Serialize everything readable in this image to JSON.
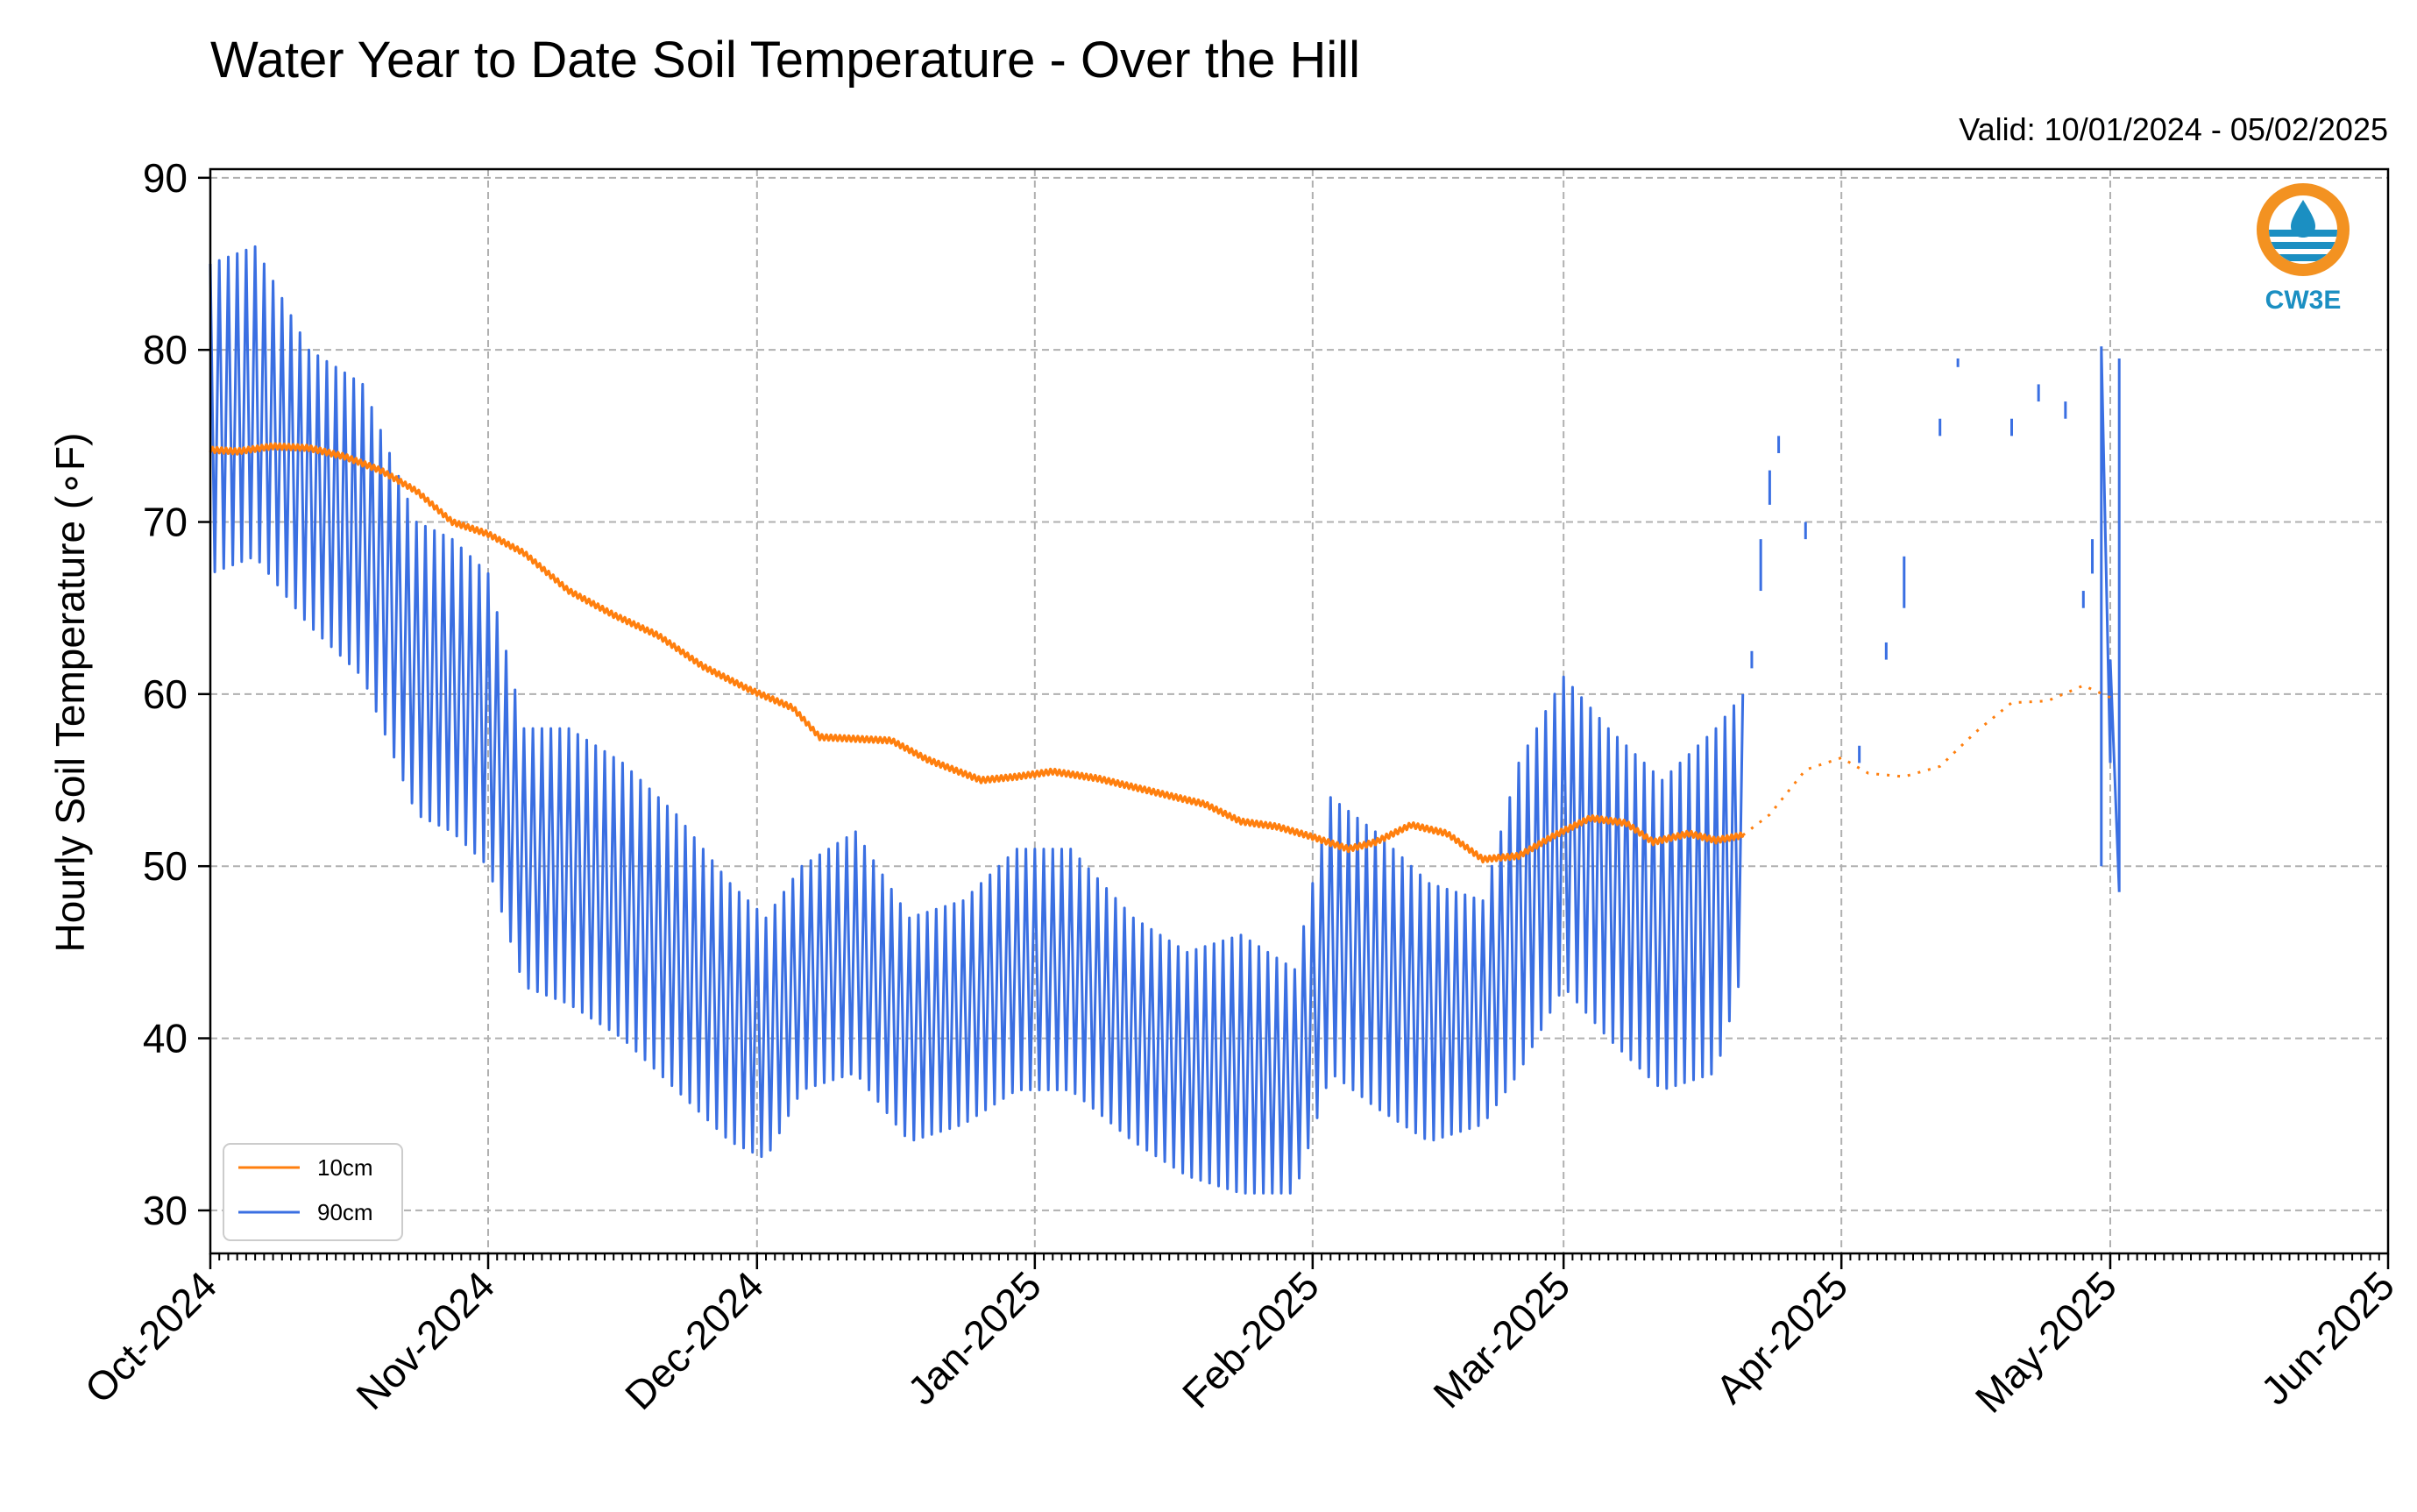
{
  "chart_data": {
    "type": "line",
    "title": "Water Year to Date Soil Temperature - Over the Hill",
    "subtitle": "Valid: 10/01/2024 - 05/02/2025",
    "ylabel": "Hourly Soil Temperature (∘F)",
    "xlabel": "",
    "ylim": [
      27.5,
      90.5
    ],
    "xlim": [
      "2024-10-01",
      "2025-06-01"
    ],
    "yticks": [
      30,
      40,
      50,
      60,
      70,
      80,
      90
    ],
    "xticks": [
      {
        "label": "Oct-2024",
        "date": "2024-10-01"
      },
      {
        "label": "Nov-2024",
        "date": "2024-11-01"
      },
      {
        "label": "Dec-2024",
        "date": "2024-12-01"
      },
      {
        "label": "Jan-2025",
        "date": "2025-01-01"
      },
      {
        "label": "Feb-2025",
        "date": "2025-02-01"
      },
      {
        "label": "Mar-2025",
        "date": "2025-03-01"
      },
      {
        "label": "Apr-2025",
        "date": "2025-04-01"
      },
      {
        "label": "May-2025",
        "date": "2025-05-01"
      },
      {
        "label": "Jun-2025",
        "date": "2025-06-01"
      }
    ],
    "grid": true,
    "legend_position": "lower-left",
    "series": [
      {
        "name": "10cm",
        "color": "#ff7f0e",
        "style": "solid",
        "points": [
          [
            "2024-10-01",
            74.2
          ],
          [
            "2024-10-04",
            74.1
          ],
          [
            "2024-10-08",
            74.4
          ],
          [
            "2024-10-12",
            74.3
          ],
          [
            "2024-10-16",
            73.8
          ],
          [
            "2024-10-20",
            73.0
          ],
          [
            "2024-10-24",
            71.8
          ],
          [
            "2024-10-28",
            70.0
          ],
          [
            "2024-11-01",
            69.3
          ],
          [
            "2024-11-05",
            68.2
          ],
          [
            "2024-11-10",
            66.0
          ],
          [
            "2024-11-15",
            64.6
          ],
          [
            "2024-11-20",
            63.4
          ],
          [
            "2024-11-25",
            61.6
          ],
          [
            "2024-11-30",
            60.3
          ],
          [
            "2024-12-05",
            59.2
          ],
          [
            "2024-12-08",
            57.5
          ],
          [
            "2024-12-12",
            57.4
          ],
          [
            "2024-12-16",
            57.3
          ],
          [
            "2024-12-20",
            56.2
          ],
          [
            "2024-12-26",
            55.0
          ],
          [
            "2024-12-30",
            55.2
          ],
          [
            "2025-01-03",
            55.5
          ],
          [
            "2025-01-08",
            55.1
          ],
          [
            "2025-01-12",
            54.6
          ],
          [
            "2025-01-16",
            54.1
          ],
          [
            "2025-01-20",
            53.6
          ],
          [
            "2025-01-24",
            52.6
          ],
          [
            "2025-01-28",
            52.3
          ],
          [
            "2025-02-01",
            51.7
          ],
          [
            "2025-02-05",
            51.0
          ],
          [
            "2025-02-08",
            51.4
          ],
          [
            "2025-02-12",
            52.4
          ],
          [
            "2025-02-16",
            51.9
          ],
          [
            "2025-02-20",
            50.4
          ],
          [
            "2025-02-24",
            50.6
          ],
          [
            "2025-02-28",
            51.8
          ],
          [
            "2025-03-04",
            52.8
          ],
          [
            "2025-03-08",
            52.5
          ],
          [
            "2025-03-11",
            51.4
          ],
          [
            "2025-03-15",
            51.9
          ],
          [
            "2025-03-18",
            51.5
          ],
          [
            "2025-03-21",
            51.8
          ]
        ]
      },
      {
        "name": "10cm-dotted",
        "color": "#ff7f0e",
        "style": "dotted",
        "points": [
          [
            "2025-03-21",
            51.8
          ],
          [
            "2025-03-24",
            53.0
          ],
          [
            "2025-03-28",
            55.6
          ],
          [
            "2025-04-01",
            56.3
          ],
          [
            "2025-04-04",
            55.4
          ],
          [
            "2025-04-08",
            55.2
          ],
          [
            "2025-04-12",
            55.8
          ],
          [
            "2025-04-16",
            57.8
          ],
          [
            "2025-04-20",
            59.5
          ],
          [
            "2025-04-24",
            59.6
          ],
          [
            "2025-04-28",
            60.5
          ],
          [
            "2025-05-01",
            59.8
          ]
        ]
      },
      {
        "name": "90cm",
        "color": "#3a6fe2",
        "style": "solid",
        "envelope": [
          [
            "2024-10-01",
            85,
            67
          ],
          [
            "2024-10-06",
            86,
            68
          ],
          [
            "2024-10-12",
            80,
            64
          ],
          [
            "2024-10-18",
            78,
            61
          ],
          [
            "2024-10-24",
            70,
            53
          ],
          [
            "2024-10-28",
            69,
            52
          ],
          [
            "2024-11-01",
            67,
            50
          ],
          [
            "2024-11-05",
            58,
            43
          ],
          [
            "2024-11-10",
            58,
            42
          ],
          [
            "2024-11-16",
            56,
            40
          ],
          [
            "2024-11-22",
            53,
            37
          ],
          [
            "2024-11-28",
            49,
            34
          ],
          [
            "2024-12-02",
            47,
            33
          ],
          [
            "2024-12-06",
            50,
            37
          ],
          [
            "2024-12-12",
            52,
            38
          ],
          [
            "2024-12-18",
            47,
            34
          ],
          [
            "2024-12-24",
            48,
            35
          ],
          [
            "2024-12-30",
            51,
            37
          ],
          [
            "2025-01-05",
            51,
            37
          ],
          [
            "2025-01-12",
            47,
            34
          ],
          [
            "2025-01-18",
            45,
            32
          ],
          [
            "2025-01-24",
            46,
            31
          ],
          [
            "2025-01-30",
            44,
            31
          ],
          [
            "2025-02-03",
            54,
            38
          ],
          [
            "2025-02-08",
            52,
            36
          ],
          [
            "2025-02-14",
            49,
            34
          ],
          [
            "2025-02-20",
            48,
            35
          ],
          [
            "2025-02-24",
            56,
            38
          ],
          [
            "2025-03-01",
            61,
            43
          ],
          [
            "2025-03-06",
            58,
            40
          ],
          [
            "2025-03-12",
            55,
            37
          ],
          [
            "2025-03-18",
            58,
            38
          ],
          [
            "2025-03-21",
            60,
            44
          ]
        ],
        "gap_segments": [
          [
            [
              "2025-03-22",
              62.5
            ],
            [
              "2025-03-22",
              61.5
            ]
          ],
          [
            [
              "2025-03-23",
              66
            ],
            [
              "2025-03-23",
              69
            ]
          ],
          [
            [
              "2025-03-24",
              71
            ],
            [
              "2025-03-24",
              73
            ]
          ],
          [
            [
              "2025-03-25",
              74
            ],
            [
              "2025-03-25",
              75
            ]
          ],
          [
            [
              "2025-03-28",
              69
            ],
            [
              "2025-03-28",
              70
            ]
          ],
          [
            [
              "2025-04-03",
              56
            ],
            [
              "2025-04-03",
              57
            ]
          ],
          [
            [
              "2025-04-06",
              63
            ],
            [
              "2025-04-06",
              62
            ]
          ],
          [
            [
              "2025-04-08",
              65
            ],
            [
              "2025-04-08",
              68
            ]
          ],
          [
            [
              "2025-04-12",
              75
            ],
            [
              "2025-04-12",
              76
            ]
          ],
          [
            [
              "2025-04-14",
              79
            ],
            [
              "2025-04-14",
              79.5
            ]
          ],
          [
            [
              "2025-04-20",
              75
            ],
            [
              "2025-04-20",
              76
            ]
          ],
          [
            [
              "2025-04-23",
              77
            ],
            [
              "2025-04-23",
              78
            ]
          ],
          [
            [
              "2025-04-26",
              76
            ],
            [
              "2025-04-26",
              77
            ]
          ],
          [
            [
              "2025-04-28",
              66
            ],
            [
              "2025-04-28",
              65
            ]
          ],
          [
            [
              "2025-04-29",
              67
            ],
            [
              "2025-04-29",
              69
            ]
          ]
        ],
        "end_burst": [
          [
            "2025-04-30",
            50
          ],
          [
            "2025-04-30",
            80.2
          ],
          [
            "2025-05-01",
            56
          ],
          [
            "2025-05-01",
            62
          ],
          [
            "2025-05-02",
            48.5
          ],
          [
            "2025-05-02",
            79.5
          ]
        ]
      }
    ]
  },
  "legend": {
    "items": [
      {
        "label": "10cm",
        "color": "#ff7f0e"
      },
      {
        "label": "90cm",
        "color": "#3a6fe2"
      }
    ]
  },
  "logo": {
    "text": "CW3E",
    "ring_color": "#f39221",
    "water_color": "#1b8fc2"
  }
}
